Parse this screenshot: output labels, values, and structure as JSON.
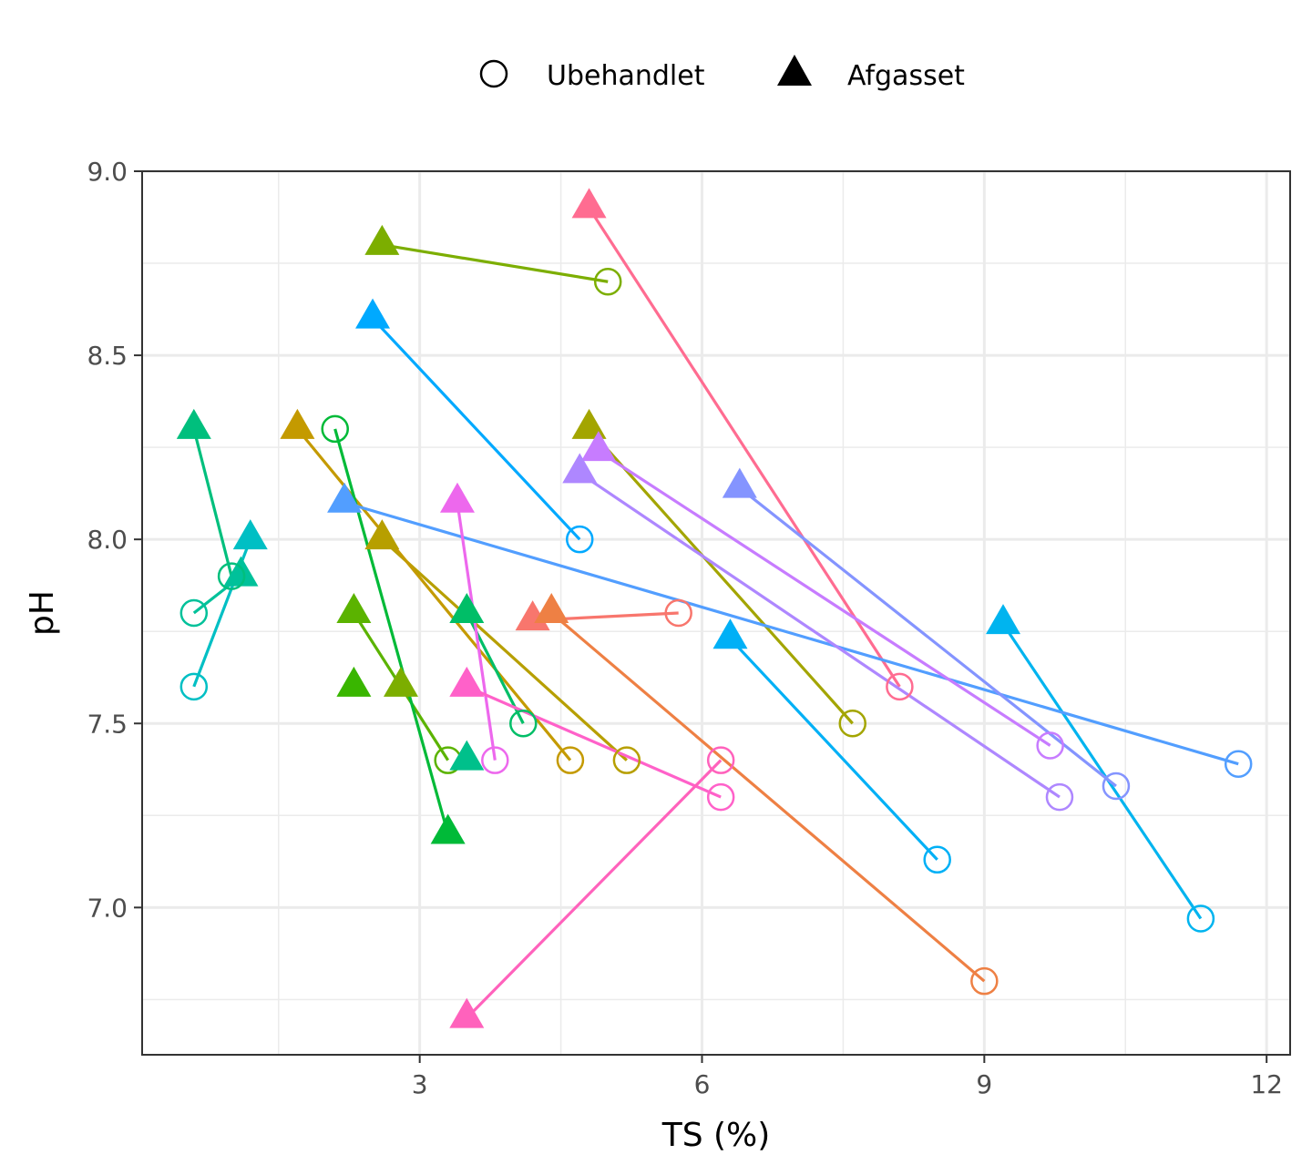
{
  "chart_data": {
    "type": "scatter",
    "title": "",
    "xlabel": "TS (%)",
    "ylabel": "pH",
    "xlim": [
      0.05,
      12.25
    ],
    "ylim": [
      6.6,
      9.0
    ],
    "xticks": [
      3,
      6,
      9,
      12
    ],
    "xtick_labels": [
      "3",
      "6",
      "9",
      "12"
    ],
    "yticks": [
      7.0,
      7.5,
      8.0,
      8.5,
      9.0
    ],
    "ytick_labels": [
      "7.0",
      "7.5",
      "8.0",
      "8.5",
      "9.0"
    ],
    "grid": true,
    "legend": {
      "position": "top",
      "entries": [
        {
          "label": "Ubehandlet",
          "shape": "open-circle"
        },
        {
          "label": "Afgasset",
          "shape": "filled-triangle"
        }
      ]
    },
    "pairs": [
      {
        "color": "#F8766D",
        "ubehandlet": [
          5.75,
          7.8
        ],
        "afgasset": [
          4.2,
          7.78
        ]
      },
      {
        "color": "#EE8044",
        "ubehandlet": [
          9.0,
          6.8
        ],
        "afgasset": [
          4.4,
          7.8
        ]
      },
      {
        "color": "#FF6C91",
        "ubehandlet": [
          8.1,
          7.6
        ],
        "afgasset": [
          4.8,
          8.9
        ]
      },
      {
        "color": "#A3A500",
        "ubehandlet": [
          7.6,
          7.5
        ],
        "afgasset": [
          4.8,
          8.3
        ]
      },
      {
        "color": "#B79F00",
        "ubehandlet": [
          5.2,
          7.4
        ],
        "afgasset": [
          2.6,
          8.0
        ]
      },
      {
        "color": "#C49A00",
        "ubehandlet": [
          4.6,
          7.4
        ],
        "afgasset": [
          1.7,
          8.3
        ]
      },
      {
        "color": "#7CAE00",
        "ubehandlet": [
          5.0,
          8.7
        ],
        "afgasset": [
          2.6,
          8.8
        ]
      },
      {
        "color": "#5BB300",
        "ubehandlet": [
          3.3,
          7.4
        ],
        "afgasset": [
          2.3,
          7.8
        ]
      },
      {
        "color": "#39B600",
        "ubehandlet": null,
        "afgasset": [
          2.3,
          7.6
        ]
      },
      {
        "color": "#7CAE00",
        "ubehandlet": null,
        "afgasset": [
          2.8,
          7.6
        ]
      },
      {
        "color": "#00BA38",
        "ubehandlet": [
          2.1,
          8.3
        ],
        "afgasset": [
          3.3,
          7.2
        ]
      },
      {
        "color": "#00C08B",
        "ubehandlet": null,
        "afgasset": [
          3.5,
          7.4
        ]
      },
      {
        "color": "#00BE67",
        "ubehandlet": [
          4.1,
          7.5
        ],
        "afgasset": [
          3.5,
          7.8
        ]
      },
      {
        "color": "#00C19A",
        "ubehandlet": [
          0.6,
          7.8
        ],
        "afgasset": [
          1.1,
          7.9
        ]
      },
      {
        "color": "#00BF7D",
        "ubehandlet": [
          1.0,
          7.9
        ],
        "afgasset": [
          0.6,
          8.3
        ]
      },
      {
        "color": "#00BFC4",
        "ubehandlet": [
          0.6,
          7.6
        ],
        "afgasset": [
          1.2,
          8.0
        ]
      },
      {
        "color": "#00B4EF",
        "ubehandlet": [
          11.3,
          6.97
        ],
        "afgasset": [
          9.2,
          7.77
        ]
      },
      {
        "color": "#00B0F6",
        "ubehandlet": [
          8.5,
          7.13
        ],
        "afgasset": [
          6.3,
          7.73
        ]
      },
      {
        "color": "#00A9FF",
        "ubehandlet": [
          4.7,
          8.0
        ],
        "afgasset": [
          2.5,
          8.6
        ]
      },
      {
        "color": "#529EFF",
        "ubehandlet": [
          11.7,
          7.39
        ],
        "afgasset": [
          2.2,
          8.1
        ]
      },
      {
        "color": "#8494FF",
        "ubehandlet": [
          10.4,
          7.33
        ],
        "afgasset": [
          6.4,
          8.14
        ]
      },
      {
        "color": "#C77CFF",
        "ubehandlet": [
          9.7,
          7.44
        ],
        "afgasset": [
          4.9,
          8.24
        ]
      },
      {
        "color": "#AE87FF",
        "ubehandlet": [
          9.8,
          7.3
        ],
        "afgasset": [
          4.7,
          8.18
        ]
      },
      {
        "color": "#ED68ED",
        "ubehandlet": [
          3.8,
          7.4
        ],
        "afgasset": [
          3.4,
          8.1
        ]
      },
      {
        "color": "#FF61C9",
        "ubehandlet": [
          6.2,
          7.3
        ],
        "afgasset": [
          3.5,
          7.6
        ]
      },
      {
        "color": "#FF62BC",
        "ubehandlet": [
          6.2,
          7.4
        ],
        "afgasset": [
          3.5,
          6.7
        ]
      }
    ]
  }
}
